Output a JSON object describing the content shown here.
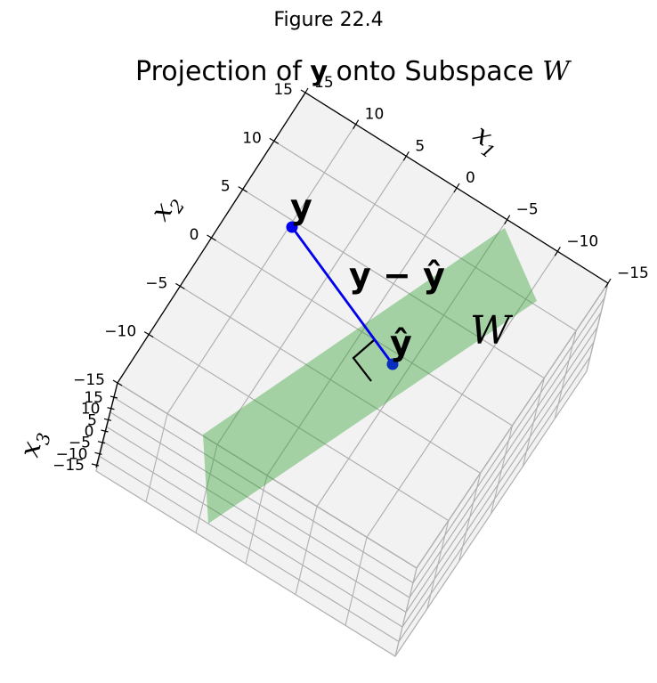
{
  "figure_label": "Figure 22.4",
  "chart_data": {
    "type": "scatter",
    "projection": "3d",
    "title": {
      "prefix": "Projection of ",
      "vector": "y",
      "middle": " onto Subspace ",
      "subspace": "W"
    },
    "axes": {
      "x": {
        "name": "x",
        "sub": "1",
        "range": [
          -15,
          15
        ],
        "ticks": [
          "15",
          "10",
          "5",
          "0",
          "−5",
          "−10",
          "−15"
        ]
      },
      "y": {
        "name": "x",
        "sub": "2",
        "range": [
          -15,
          15
        ],
        "ticks": [
          "15",
          "10",
          "5",
          "0",
          "−5",
          "−10",
          "−15"
        ]
      },
      "z": {
        "name": "x",
        "sub": "3",
        "range": [
          -15,
          15
        ],
        "ticks": [
          "15",
          "10",
          "5",
          "0",
          "−5",
          "−10",
          "−15"
        ]
      }
    },
    "grid": true,
    "points": [
      {
        "name": "y",
        "label": "y",
        "color": "#0000ee"
      },
      {
        "name": "y_hat",
        "label": "ŷ",
        "color": "#0000ee"
      }
    ],
    "segment": {
      "from": "y",
      "to": "y_hat",
      "label": "y − ŷ",
      "color": "#0000ee"
    },
    "plane": {
      "label": "W",
      "color": "#2ca02c",
      "opacity": 0.4
    },
    "right_angle_marker": true,
    "pane_color": "#f2f2f2",
    "grid_color": "#b0b0b0"
  }
}
